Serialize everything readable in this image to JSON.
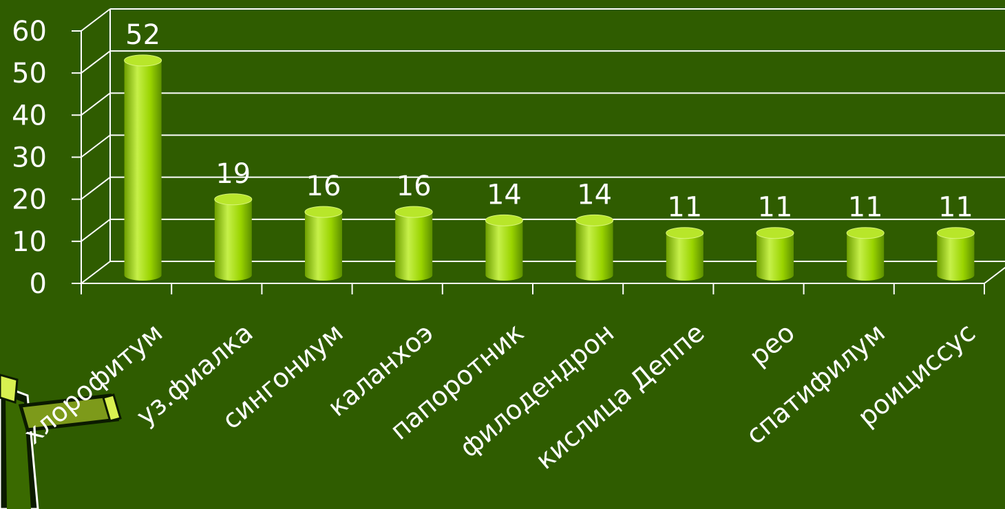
{
  "chart_data": {
    "type": "bar",
    "categories": [
      "хлорофитум",
      "уз.фиалка",
      "сингониум",
      "каланхоэ",
      "папоротник",
      "филодендрон",
      "кислица Деппе",
      "рео",
      "спатифилум",
      "роициссус"
    ],
    "values": [
      52,
      19,
      16,
      16,
      14,
      14,
      11,
      11,
      11,
      11
    ],
    "ylim": [
      0,
      60
    ],
    "yticks": [
      0,
      10,
      20,
      30,
      40,
      50,
      60
    ],
    "grid": true,
    "bar_style": "3d-cylinder",
    "data_labels": true,
    "colors": {
      "background": "#2f5c00",
      "bar_main": "#9ad400",
      "bar_light": "#c6f04a",
      "bar_dark": "#5c8f00",
      "bar_top": "#b8e62a",
      "grid": "#ffffff",
      "text": "#ffffff"
    }
  },
  "decoration": {
    "icon": "plant-pot-icon"
  }
}
